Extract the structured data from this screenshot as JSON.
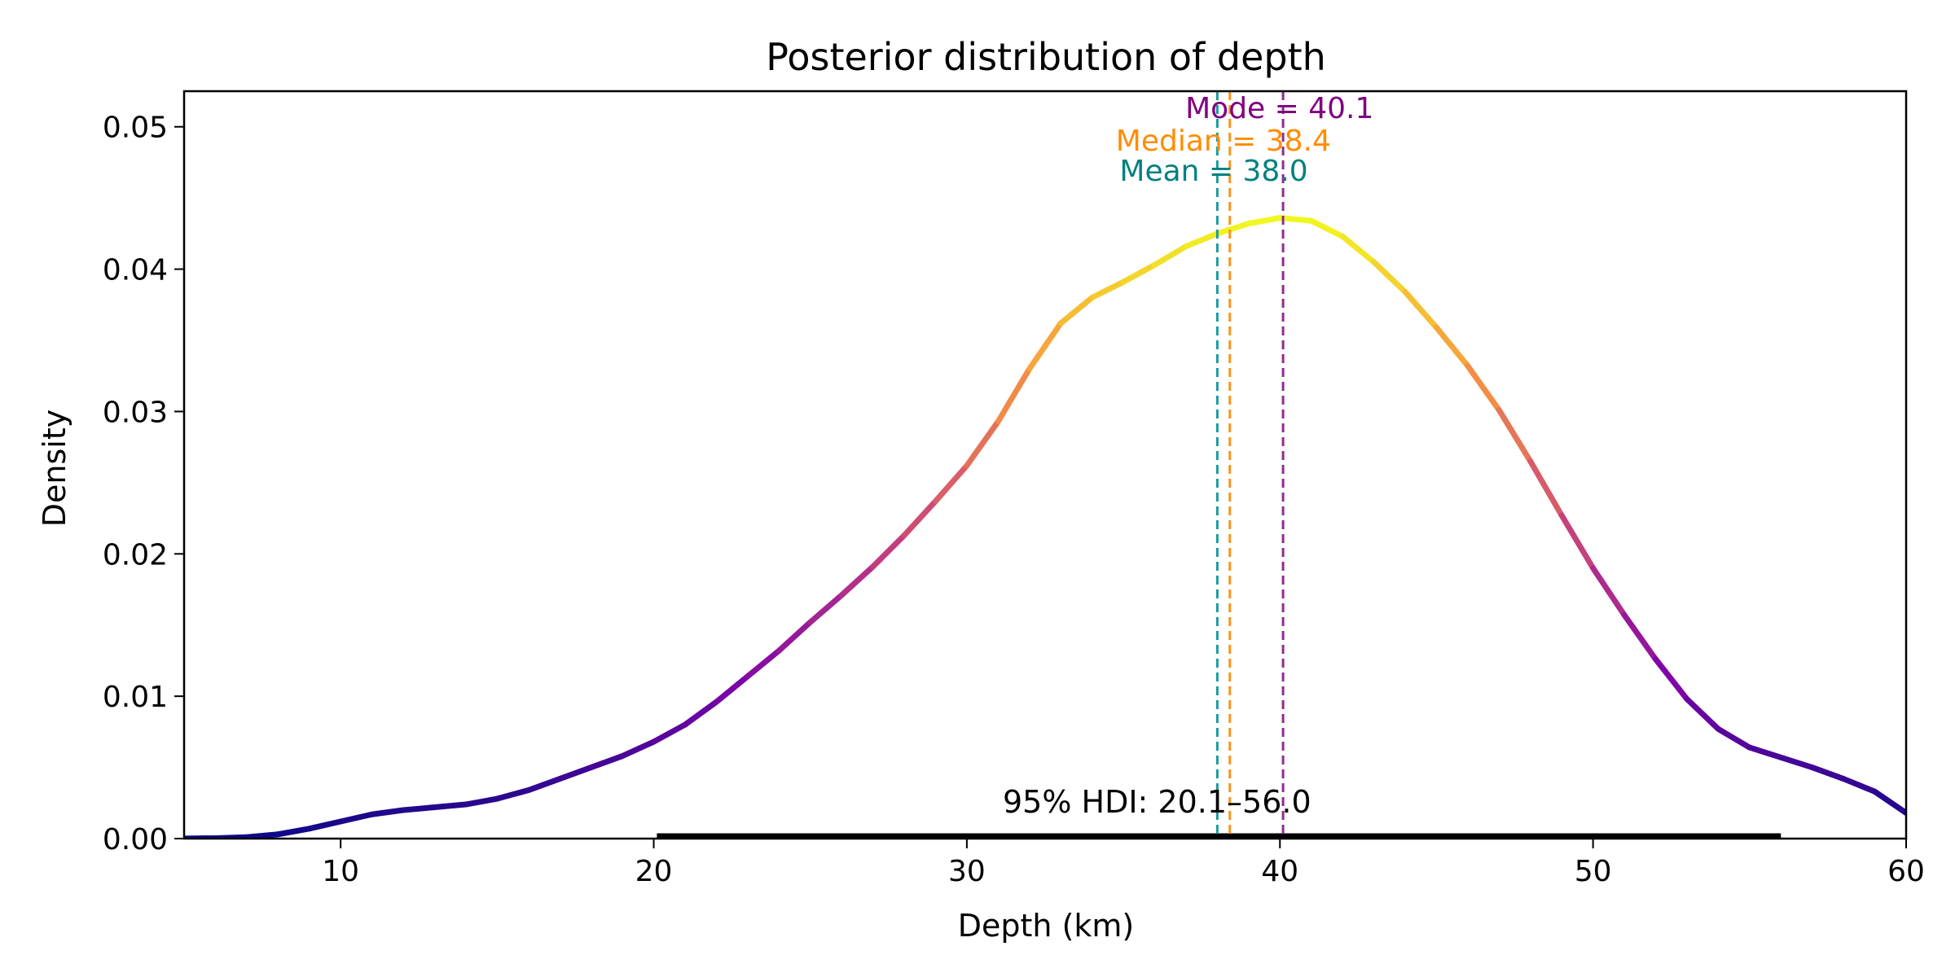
{
  "chart_data": {
    "type": "line",
    "title": "Posterior distribution of depth",
    "xlabel": "Depth (km)",
    "ylabel": "Density",
    "xlim": [
      5,
      60
    ],
    "ylim": [
      0,
      0.0525
    ],
    "xticks": [
      {
        "value": 10,
        "label": "10"
      },
      {
        "value": 20,
        "label": "20"
      },
      {
        "value": 30,
        "label": "30"
      },
      {
        "value": 40,
        "label": "40"
      },
      {
        "value": 50,
        "label": "50"
      },
      {
        "value": 60,
        "label": "60"
      }
    ],
    "yticks": [
      {
        "value": 0,
        "label": "0.00"
      },
      {
        "value": 0.01,
        "label": "0.01"
      },
      {
        "value": 0.02,
        "label": "0.02"
      },
      {
        "value": 0.03,
        "label": "0.03"
      },
      {
        "value": 0.04,
        "label": "0.04"
      },
      {
        "value": 0.05,
        "label": "0.05"
      }
    ],
    "grid": false,
    "legend": "none",
    "colormap": "plasma",
    "series": [
      {
        "x": [
          5,
          6,
          7,
          8,
          9,
          10,
          11,
          12,
          13,
          14,
          15,
          16,
          17,
          18,
          19,
          20,
          21,
          22,
          23,
          24,
          25,
          26,
          27,
          28,
          29,
          30,
          31,
          32,
          33,
          34,
          35,
          36,
          37,
          38,
          39,
          40,
          41,
          42,
          43,
          44,
          45,
          46,
          47,
          48,
          49,
          50,
          51,
          52,
          53,
          54,
          55,
          56,
          57,
          58,
          59,
          60
        ],
        "y": [
          1e-05,
          3e-05,
          0.0001,
          0.0003,
          0.0007,
          0.0012,
          0.0017,
          0.002,
          0.0022,
          0.0024,
          0.0028,
          0.0034,
          0.0042,
          0.005,
          0.0058,
          0.0068,
          0.008,
          0.0096,
          0.0114,
          0.0132,
          0.0152,
          0.0171,
          0.0191,
          0.0213,
          0.0237,
          0.0262,
          0.0293,
          0.033,
          0.0362,
          0.038,
          0.0391,
          0.0403,
          0.0416,
          0.0425,
          0.0432,
          0.0436,
          0.0434,
          0.0423,
          0.0405,
          0.0384,
          0.0359,
          0.0332,
          0.0301,
          0.0265,
          0.0227,
          0.019,
          0.0157,
          0.0126,
          0.0098,
          0.0077,
          0.0064,
          0.0057,
          0.005,
          0.0042,
          0.0033,
          0.0018
        ]
      }
    ],
    "annotations": [
      {
        "kind": "vline",
        "x": 38.0,
        "label": "Mean = 38.0",
        "color": "#008080"
      },
      {
        "kind": "vline",
        "x": 38.4,
        "label": "Median = 38.4",
        "color": "#ff8c00"
      },
      {
        "kind": "vline",
        "x": 40.1,
        "label": "Mode = 40.1",
        "color": "#800080"
      }
    ],
    "hdi": {
      "low": 20.1,
      "high": 56.0,
      "label": "95% HDI: 20.1–56.0",
      "color": "#000000"
    },
    "vline_colors": {
      "Mean": "#1a9c9c",
      "Median": "#f7941d",
      "Mode": "#8e2d8e"
    }
  }
}
